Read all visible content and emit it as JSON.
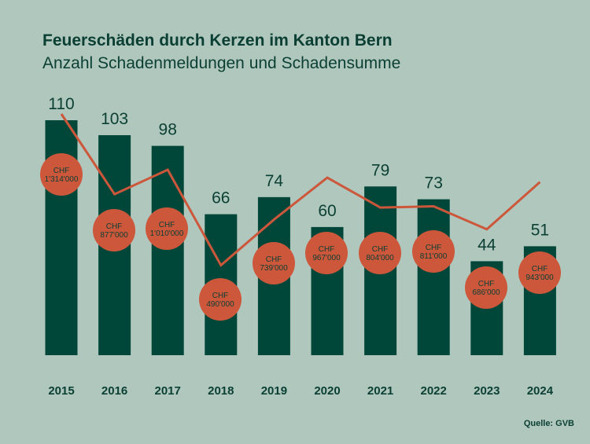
{
  "chart_data": {
    "type": "bar",
    "title": "Feuerschäden durch Kerzen im Kanton Bern",
    "subtitle": "Anzahl Schadenmeldungen und Schadensumme",
    "source": "Quelle: GVB",
    "categories": [
      "2015",
      "2016",
      "2017",
      "2018",
      "2019",
      "2020",
      "2021",
      "2022",
      "2023",
      "2024"
    ],
    "series": [
      {
        "type": "bar",
        "values": [
          110,
          103,
          98,
          66,
          74,
          60,
          79,
          73,
          44,
          51
        ],
        "color": "#00473a"
      },
      {
        "type": "line",
        "values": [
          1314000,
          877000,
          1010000,
          490000,
          739000,
          967000,
          804000,
          811000,
          686000,
          943000
        ],
        "labels": [
          "CHF 1'314'000",
          "CHF 877'000",
          "CHF 1'010'000",
          "CHF 490'000",
          "CHF 739'000",
          "CHF 967'000",
          "CHF 804'000",
          "CHF 811'000",
          "CHF 686'000",
          "CHF 943'000"
        ],
        "color": "#cc573b"
      }
    ],
    "grid": false,
    "background": "#afc7bc"
  }
}
